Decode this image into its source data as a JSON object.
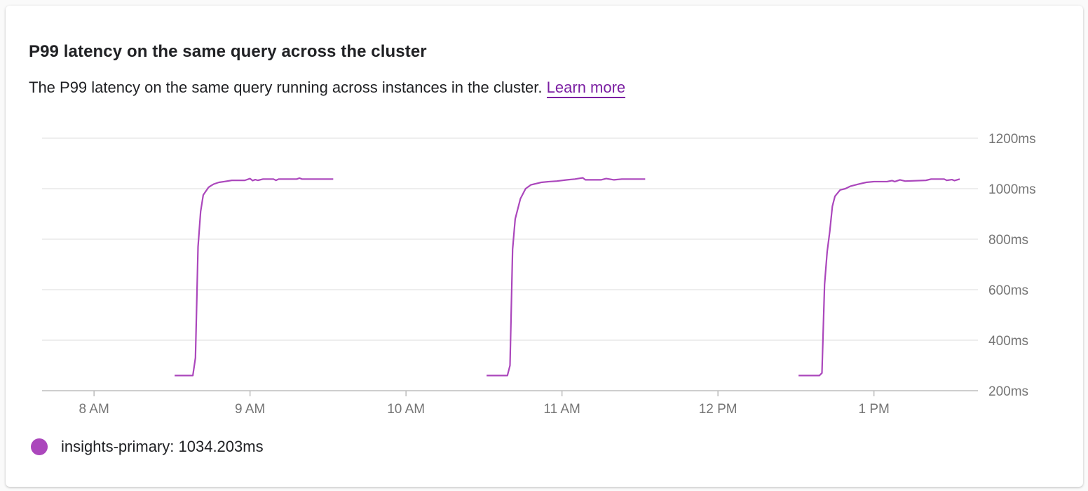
{
  "card": {
    "title": "P99 latency on the same query across the cluster",
    "description": "The P99 latency on the same query running across instances in the cluster.",
    "link_label": "Learn more"
  },
  "colors": {
    "series": "#ab47bc",
    "link": "#7b1fa2",
    "grid": "#e8e8e8",
    "axis_text": "#757575"
  },
  "chart_data": {
    "type": "line",
    "title": "P99 latency on the same query across the cluster",
    "xlabel": "",
    "ylabel": "",
    "xlim": [
      "07:40",
      "13:40"
    ],
    "ylim": [
      200,
      1200
    ],
    "yticks": [
      200,
      400,
      600,
      800,
      1000,
      1200
    ],
    "ytick_labels": [
      "200ms",
      "400ms",
      "600ms",
      "800ms",
      "1000ms",
      "1200ms"
    ],
    "xticks": [
      "08:00",
      "09:00",
      "10:00",
      "11:00",
      "12:00",
      "13:00"
    ],
    "xtick_labels": [
      "8 AM",
      "9 AM",
      "10 AM",
      "11 AM",
      "12 PM",
      "1 PM"
    ],
    "grid": true,
    "legend_placement": "bottom-left",
    "series": [
      {
        "name": "insights-primary",
        "legend_value": "1034.203ms",
        "segments": [
          [
            [
              "08:31",
              260
            ],
            [
              "08:38",
              260
            ],
            [
              "08:39",
              330
            ],
            [
              "08:40",
              770
            ],
            [
              "08:41",
              910
            ],
            [
              "08:42",
              975
            ],
            [
              "08:43",
              990
            ],
            [
              "08:44",
              1005
            ],
            [
              "08:45",
              1012
            ],
            [
              "08:46",
              1018
            ],
            [
              "08:48",
              1025
            ],
            [
              "08:50",
              1028
            ],
            [
              "08:53",
              1033
            ],
            [
              "08:58",
              1033
            ],
            [
              "09:00",
              1040
            ],
            [
              "09:01",
              1032
            ],
            [
              "09:02",
              1036
            ],
            [
              "09:03",
              1033
            ],
            [
              "09:05",
              1038
            ],
            [
              "09:09",
              1038
            ],
            [
              "09:10",
              1033
            ],
            [
              "09:11",
              1038
            ],
            [
              "09:18",
              1038
            ],
            [
              "09:19",
              1042
            ],
            [
              "09:20",
              1038
            ],
            [
              "09:32",
              1038
            ]
          ],
          [
            [
              "10:31",
              260
            ],
            [
              "10:39",
              260
            ],
            [
              "10:40",
              300
            ],
            [
              "10:41",
              760
            ],
            [
              "10:42",
              880
            ],
            [
              "10:44",
              960
            ],
            [
              "10:46",
              1000
            ],
            [
              "10:48",
              1015
            ],
            [
              "10:50",
              1020
            ],
            [
              "10:52",
              1025
            ],
            [
              "10:55",
              1028
            ],
            [
              "10:58",
              1030
            ],
            [
              "11:02",
              1035
            ],
            [
              "11:05",
              1038
            ],
            [
              "11:08",
              1043
            ],
            [
              "11:09",
              1035
            ],
            [
              "11:15",
              1035
            ],
            [
              "11:17",
              1040
            ],
            [
              "11:20",
              1035
            ],
            [
              "11:23",
              1038
            ],
            [
              "11:32",
              1038
            ]
          ],
          [
            [
              "12:31",
              260
            ],
            [
              "12:39",
              260
            ],
            [
              "12:40",
              270
            ],
            [
              "12:41",
              620
            ],
            [
              "12:42",
              750
            ],
            [
              "12:43",
              830
            ],
            [
              "12:44",
              930
            ],
            [
              "12:45",
              970
            ],
            [
              "12:47",
              995
            ],
            [
              "12:49",
              1000
            ],
            [
              "12:51",
              1010
            ],
            [
              "12:54",
              1018
            ],
            [
              "12:57",
              1025
            ],
            [
              "13:00",
              1028
            ],
            [
              "13:05",
              1028
            ],
            [
              "13:07",
              1032
            ],
            [
              "13:08",
              1028
            ],
            [
              "13:10",
              1035
            ],
            [
              "13:12",
              1030
            ],
            [
              "13:20",
              1033
            ],
            [
              "13:22",
              1038
            ],
            [
              "13:27",
              1038
            ],
            [
              "13:28",
              1033
            ],
            [
              "13:30",
              1036
            ],
            [
              "13:31",
              1032
            ],
            [
              "13:33",
              1038
            ]
          ]
        ]
      }
    ]
  }
}
